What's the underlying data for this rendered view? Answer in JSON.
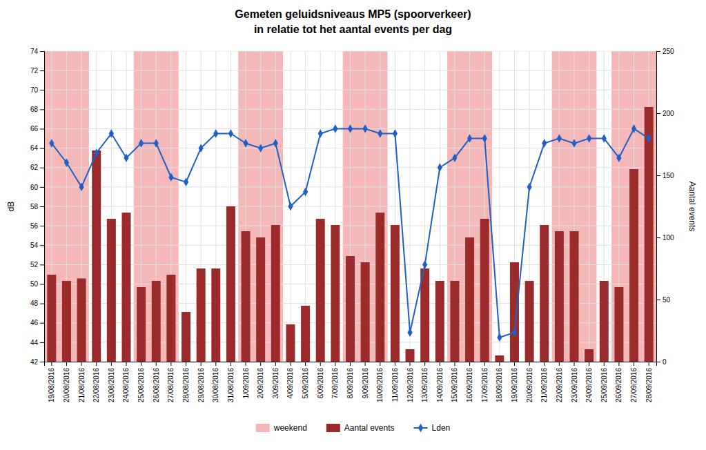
{
  "chart_data": {
    "type": "bar",
    "title": "Gemeten geluidsniveaus MP5 (spoorverkeer)",
    "subtitle": "in relatie tot het aantal events per dag",
    "ylabel": "dB",
    "y2label": "Aantal events",
    "categories": [
      "19/08/2016",
      "20/08/2016",
      "21/08/2016",
      "22/08/2016",
      "23/08/2016",
      "24/08/2016",
      "25/08/2016",
      "26/08/2016",
      "27/08/2016",
      "28/08/2016",
      "29/08/2016",
      "30/08/2016",
      "31/08/2016",
      "1/09/2016",
      "2/09/2016",
      "3/09/2016",
      "4/09/2016",
      "5/09/2016",
      "6/09/2016",
      "7/09/2016",
      "8/09/2016",
      "9/09/2016",
      "10/09/2016",
      "11/09/2016",
      "12/09/2016",
      "13/09/2016",
      "14/09/2016",
      "15/09/2016",
      "16/09/2016",
      "17/09/2016",
      "18/09/2016",
      "19/09/2016",
      "20/09/2016",
      "21/09/2016",
      "22/09/2016",
      "23/09/2016",
      "24/09/2016",
      "25/09/2016",
      "26/09/2016",
      "27/09/2016",
      "28/09/2016"
    ],
    "ylim": [
      42,
      74
    ],
    "yticks": [
      42,
      44,
      46,
      48,
      50,
      52,
      54,
      56,
      58,
      60,
      62,
      64,
      66,
      68,
      70,
      72,
      74
    ],
    "y2lim": [
      0,
      250
    ],
    "y2ticks": [
      0,
      50,
      100,
      150,
      200,
      250
    ],
    "grid": true,
    "legend": "bottom",
    "highlight_ranges": {
      "name": "weekend",
      "color": "#f5b8b8",
      "ranges": [
        [
          "19/08/2016",
          "21/08/2016"
        ],
        [
          "25/08/2016",
          "27/08/2016"
        ],
        [
          "1/09/2016",
          "3/09/2016"
        ],
        [
          "8/09/2016",
          "10/09/2016"
        ],
        [
          "15/09/2016",
          "17/09/2016"
        ],
        [
          "22/09/2016",
          "24/09/2016"
        ],
        [
          "26/09/2016",
          "28/09/2016"
        ]
      ]
    },
    "series": [
      {
        "name": "Aantal events",
        "type": "bar",
        "axis": "y2",
        "color": "#9b2b2b",
        "values": [
          70,
          65,
          67,
          170,
          115,
          120,
          60,
          65,
          70,
          40,
          75,
          75,
          125,
          105,
          100,
          110,
          30,
          45,
          115,
          110,
          85,
          80,
          120,
          110,
          10,
          75,
          65,
          65,
          100,
          115,
          5,
          80,
          65,
          110,
          105,
          105,
          10,
          65,
          60,
          155,
          205
        ]
      },
      {
        "name": "Lden",
        "type": "line",
        "color": "#1f5fc8",
        "marker": "diamond",
        "values": [
          64.5,
          62.5,
          60.0,
          63.5,
          65.5,
          63.0,
          64.5,
          64.5,
          61.0,
          60.5,
          64.0,
          65.5,
          65.5,
          64.5,
          64.0,
          64.5,
          58.0,
          59.5,
          65.5,
          66.0,
          66.0,
          66.0,
          65.5,
          65.5,
          45.0,
          52.0,
          62.0,
          63.0,
          65.0,
          65.0,
          44.5,
          45.0,
          60.0,
          64.5,
          65.0,
          64.5,
          65.0,
          65.0,
          63.0,
          66.0,
          65.0
        ]
      }
    ]
  }
}
